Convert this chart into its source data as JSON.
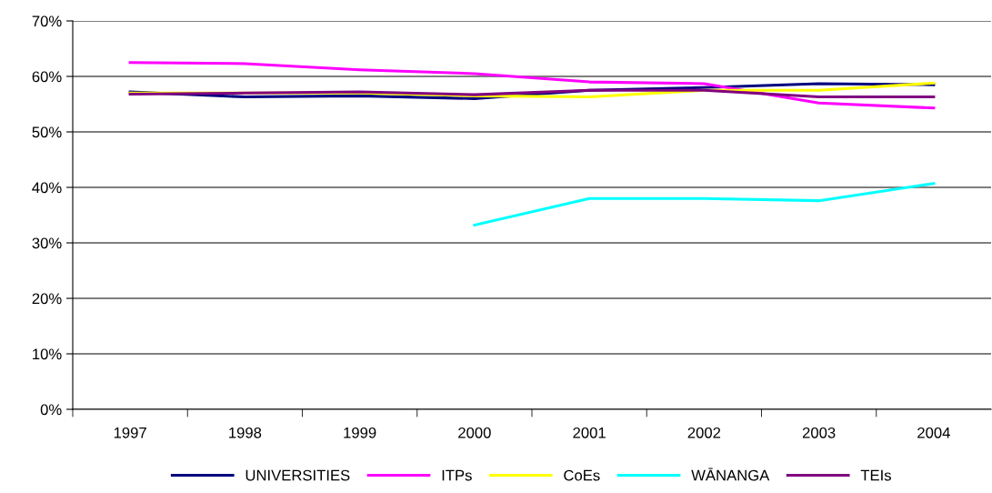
{
  "chart_data": {
    "type": "line",
    "categories": [
      "1997",
      "1998",
      "1999",
      "2000",
      "2001",
      "2002",
      "2003",
      "2004"
    ],
    "ylim": [
      0,
      70
    ],
    "yticks": [
      {
        "value": 0,
        "label": "0%"
      },
      {
        "value": 10,
        "label": "10%"
      },
      {
        "value": 20,
        "label": "20%"
      },
      {
        "value": 30,
        "label": "30%"
      },
      {
        "value": 40,
        "label": "40%"
      },
      {
        "value": 50,
        "label": "50%"
      },
      {
        "value": 60,
        "label": "60%"
      },
      {
        "value": 70,
        "label": "70%"
      }
    ],
    "grid": "y",
    "legend": "bottom",
    "marker": "none",
    "line_style": "solid",
    "series": [
      {
        "name": "UNIVERSITIES",
        "color": "#000080",
        "values": [
          57.2,
          56.3,
          56.5,
          56.0,
          57.5,
          58.0,
          58.7,
          58.5
        ]
      },
      {
        "name": "ITPs",
        "color": "#ff00ff",
        "values": [
          62.5,
          62.3,
          61.2,
          60.5,
          59.0,
          58.7,
          55.2,
          54.3
        ]
      },
      {
        "name": "CoEs",
        "color": "#ffff00",
        "values": [
          57.0,
          57.0,
          57.0,
          56.5,
          56.3,
          57.5,
          57.5,
          58.8
        ]
      },
      {
        "name": "WĀNANGA",
        "color": "#00ffff",
        "values": [
          null,
          null,
          null,
          33.2,
          38.0,
          38.0,
          37.6,
          40.7
        ]
      },
      {
        "name": "TEIs",
        "color": "#800080",
        "values": [
          56.8,
          57.0,
          57.2,
          56.7,
          57.5,
          57.5,
          56.3,
          56.3
        ]
      }
    ]
  }
}
